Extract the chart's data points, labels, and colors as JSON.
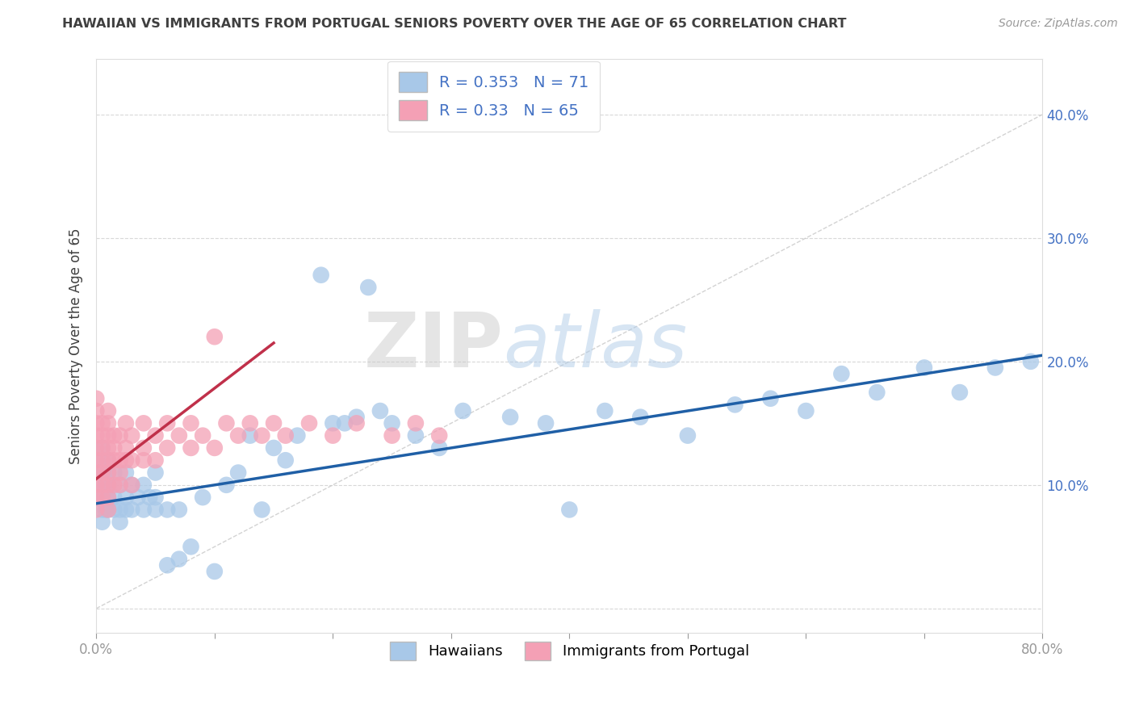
{
  "title": "HAWAIIAN VS IMMIGRANTS FROM PORTUGAL SENIORS POVERTY OVER THE AGE OF 65 CORRELATION CHART",
  "source": "Source: ZipAtlas.com",
  "ylabel": "Seniors Poverty Over the Age of 65",
  "xlim": [
    0.0,
    0.8
  ],
  "ylim": [
    -0.02,
    0.445
  ],
  "x_ticks": [
    0.0,
    0.1,
    0.2,
    0.3,
    0.4,
    0.5,
    0.6,
    0.7,
    0.8
  ],
  "y_ticks": [
    0.0,
    0.1,
    0.2,
    0.3,
    0.4
  ],
  "hawaiians_color": "#a8c8e8",
  "portugal_color": "#f4a0b5",
  "hawaii_R": 0.353,
  "hawaii_N": 71,
  "portugal_R": 0.33,
  "portugal_N": 65,
  "legend_label_1": "Hawaiians",
  "legend_label_2": "Immigrants from Portugal",
  "watermark_zip": "ZIP",
  "watermark_atlas": "atlas",
  "hawaii_scatter_x": [
    0.005,
    0.005,
    0.005,
    0.005,
    0.005,
    0.005,
    0.005,
    0.008,
    0.008,
    0.01,
    0.01,
    0.01,
    0.01,
    0.01,
    0.015,
    0.015,
    0.015,
    0.02,
    0.02,
    0.02,
    0.025,
    0.025,
    0.025,
    0.03,
    0.03,
    0.035,
    0.04,
    0.04,
    0.045,
    0.05,
    0.05,
    0.05,
    0.06,
    0.06,
    0.07,
    0.07,
    0.08,
    0.09,
    0.1,
    0.11,
    0.12,
    0.13,
    0.14,
    0.15,
    0.16,
    0.17,
    0.19,
    0.21,
    0.23,
    0.25,
    0.27,
    0.29,
    0.31,
    0.35,
    0.38,
    0.4,
    0.43,
    0.46,
    0.5,
    0.54,
    0.57,
    0.6,
    0.63,
    0.66,
    0.7,
    0.73,
    0.76,
    0.79,
    0.2,
    0.22,
    0.24
  ],
  "hawaii_scatter_y": [
    0.12,
    0.1,
    0.08,
    0.11,
    0.09,
    0.07,
    0.13,
    0.1,
    0.08,
    0.09,
    0.11,
    0.08,
    0.1,
    0.12,
    0.09,
    0.11,
    0.08,
    0.1,
    0.08,
    0.07,
    0.09,
    0.11,
    0.08,
    0.1,
    0.08,
    0.09,
    0.1,
    0.08,
    0.09,
    0.11,
    0.09,
    0.08,
    0.035,
    0.08,
    0.04,
    0.08,
    0.05,
    0.09,
    0.03,
    0.1,
    0.11,
    0.14,
    0.08,
    0.13,
    0.12,
    0.14,
    0.27,
    0.15,
    0.26,
    0.15,
    0.14,
    0.13,
    0.16,
    0.155,
    0.15,
    0.08,
    0.16,
    0.155,
    0.14,
    0.165,
    0.17,
    0.16,
    0.19,
    0.175,
    0.195,
    0.175,
    0.195,
    0.2,
    0.15,
    0.155,
    0.16
  ],
  "portugal_scatter_x": [
    0.0,
    0.0,
    0.0,
    0.0,
    0.0,
    0.0,
    0.0,
    0.0,
    0.0,
    0.0,
    0.005,
    0.005,
    0.005,
    0.005,
    0.005,
    0.005,
    0.005,
    0.01,
    0.01,
    0.01,
    0.01,
    0.01,
    0.01,
    0.01,
    0.01,
    0.01,
    0.015,
    0.015,
    0.015,
    0.015,
    0.02,
    0.02,
    0.02,
    0.02,
    0.025,
    0.025,
    0.025,
    0.03,
    0.03,
    0.03,
    0.04,
    0.04,
    0.04,
    0.05,
    0.05,
    0.06,
    0.06,
    0.07,
    0.08,
    0.08,
    0.09,
    0.1,
    0.11,
    0.12,
    0.13,
    0.14,
    0.15,
    0.16,
    0.18,
    0.2,
    0.22,
    0.25,
    0.27,
    0.29,
    0.1
  ],
  "portugal_scatter_y": [
    0.14,
    0.12,
    0.1,
    0.13,
    0.11,
    0.09,
    0.15,
    0.08,
    0.16,
    0.17,
    0.12,
    0.14,
    0.1,
    0.13,
    0.11,
    0.09,
    0.15,
    0.12,
    0.14,
    0.1,
    0.08,
    0.11,
    0.13,
    0.09,
    0.15,
    0.16,
    0.12,
    0.14,
    0.1,
    0.13,
    0.12,
    0.14,
    0.1,
    0.11,
    0.13,
    0.15,
    0.12,
    0.14,
    0.12,
    0.1,
    0.13,
    0.15,
    0.12,
    0.14,
    0.12,
    0.13,
    0.15,
    0.14,
    0.13,
    0.15,
    0.14,
    0.13,
    0.15,
    0.14,
    0.15,
    0.14,
    0.15,
    0.14,
    0.15,
    0.14,
    0.15,
    0.14,
    0.15,
    0.14,
    0.22
  ],
  "hawaii_trend_x": [
    0.0,
    0.8
  ],
  "hawaii_trend_y": [
    0.085,
    0.205
  ],
  "portugal_trend_x": [
    0.0,
    0.15
  ],
  "portugal_trend_y": [
    0.105,
    0.215
  ],
  "ref_line_x": [
    0.0,
    0.8
  ],
  "ref_line_y": [
    0.0,
    0.4
  ],
  "title_color": "#404040",
  "source_color": "#999999",
  "axis_label_color": "#404040",
  "tick_color": "#999999",
  "right_tick_color": "#4472c4",
  "hawaii_line_color": "#1f5fa6",
  "portugal_line_color": "#c0304a",
  "ref_line_color": "#c8c8c8",
  "legend_r_color": "#4472c4"
}
